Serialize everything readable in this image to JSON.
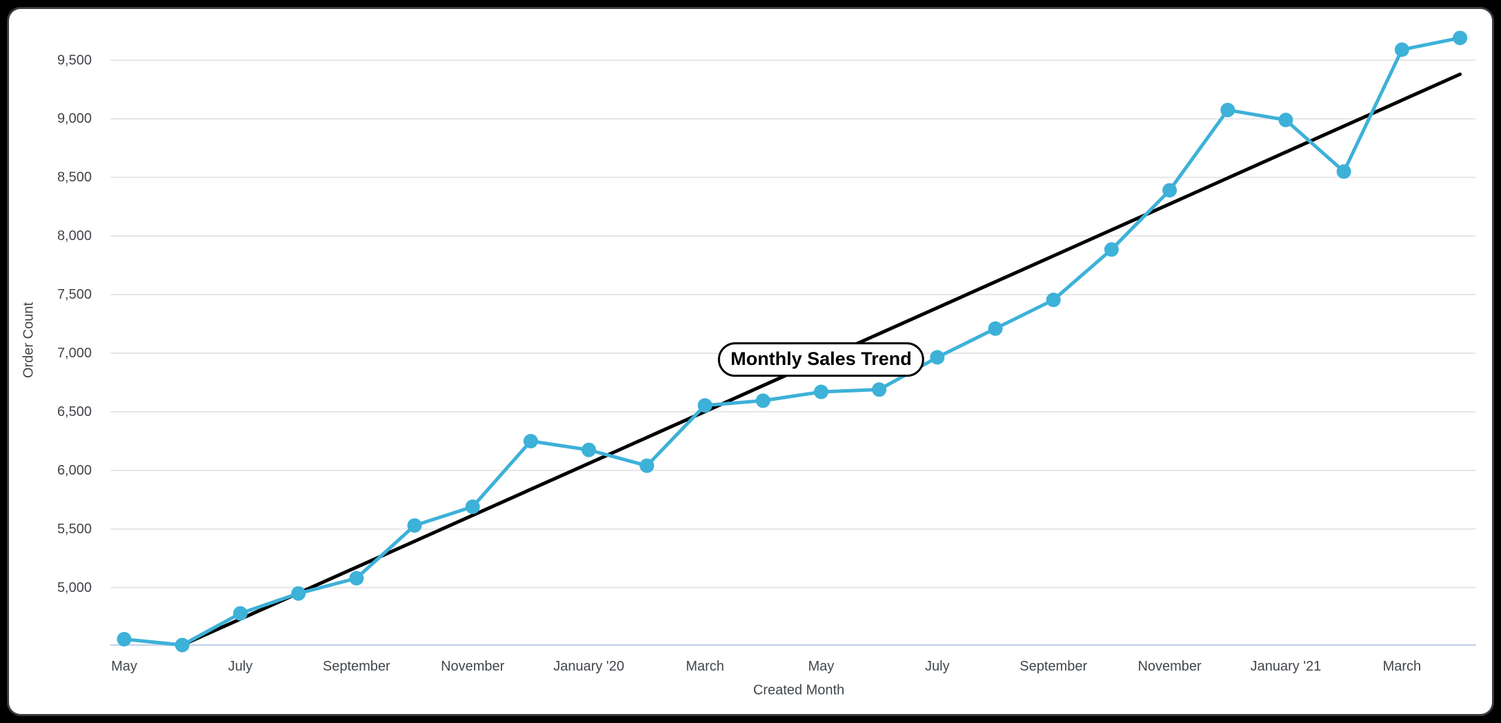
{
  "chart_data": {
    "type": "line",
    "title": "Monthly Sales Trend",
    "xlabel": "Created Month",
    "ylabel": "Order Count",
    "categories": [
      "May 2019",
      "June 2019",
      "July 2019",
      "August 2019",
      "September 2019",
      "October 2019",
      "November 2019",
      "December 2019",
      "January 2020",
      "February 2020",
      "March 2020",
      "April 2020",
      "May 2020",
      "June 2020",
      "July 2020",
      "August 2020",
      "September 2020",
      "October 2020",
      "November 2020",
      "December 2020",
      "January 2021",
      "February 2021",
      "March 2021",
      "April 2021"
    ],
    "x_axis_tick_indices": [
      0,
      2,
      4,
      6,
      8,
      10,
      12,
      14,
      16,
      18,
      20,
      22
    ],
    "x_axis_tick_labels": [
      "May",
      "July",
      "September",
      "November",
      "January '20",
      "March",
      "May",
      "July",
      "September",
      "November",
      "January '21",
      "March"
    ],
    "y_ticks": [
      {
        "value": 5000,
        "label": "5,000"
      },
      {
        "value": 5500,
        "label": "5,500"
      },
      {
        "value": 6000,
        "label": "6,000"
      },
      {
        "value": 6500,
        "label": "6,500"
      },
      {
        "value": 7000,
        "label": "7,000"
      },
      {
        "value": 7500,
        "label": "7,500"
      },
      {
        "value": 8000,
        "label": "8,000"
      },
      {
        "value": 8500,
        "label": "8,500"
      },
      {
        "value": 9000,
        "label": "9,000"
      },
      {
        "value": 9500,
        "label": "9,500"
      }
    ],
    "ylim": [
      4510,
      9837
    ],
    "grid": "horizontal",
    "legend": "none",
    "series": [
      {
        "name": "Order Count",
        "color": "#3db1d8",
        "values": [
          4560,
          4510,
          4780,
          4950,
          5080,
          5530,
          5690,
          6250,
          6175,
          6040,
          6555,
          6595,
          6670,
          6690,
          6965,
          7210,
          7455,
          7885,
          8390,
          9075,
          8990,
          8550,
          9590,
          9690
        ]
      },
      {
        "name": "Trend line",
        "color": "#000000",
        "trend": {
          "start_index": 1,
          "start_value": 4510,
          "end_index": 23,
          "end_value": 9380
        }
      }
    ],
    "annotation": {
      "text": "Monthly Sales Trend",
      "anchor_index": 12
    }
  },
  "colors": {
    "page_background": "#000000",
    "card_background": "#ffffff",
    "card_border": "#363b3e",
    "gridline": "#e6e6e6",
    "axis_baseline": "#c8d3ea",
    "tick_text": "#41464b",
    "series_line": "#3db1d8",
    "trend_line": "#000000"
  }
}
